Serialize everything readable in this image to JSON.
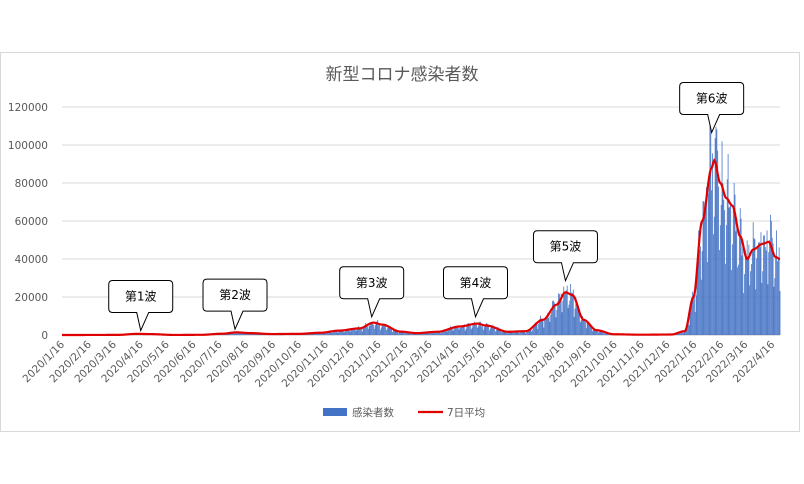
{
  "chart_data": {
    "type": "bar",
    "title": "新型コロナ感染者数",
    "ylim": [
      0,
      120000
    ],
    "yticks": [
      "0",
      "20000",
      "40000",
      "60000",
      "80000",
      "100000",
      "120000"
    ],
    "x_tick_labels": [
      "2020/1/16",
      "2020/2/16",
      "2020/3/16",
      "2020/4/16",
      "2020/5/16",
      "2020/6/16",
      "2020/7/16",
      "2020/8/16",
      "2020/9/16",
      "2020/10/16",
      "2020/11/16",
      "2020/12/16",
      "2021/1/16",
      "2021/2/16",
      "2021/3/16",
      "2021/4/16",
      "2021/5/16",
      "2021/6/16",
      "2021/7/16",
      "2021/8/16",
      "2021/9/16",
      "2021/10/16",
      "2021/11/16",
      "2021/12/16",
      "2022/1/16",
      "2022/2/16",
      "2022/3/16",
      "2022/4/16"
    ],
    "grid": true,
    "legend_position": "bottom",
    "series": [
      {
        "name": "感染者数",
        "type": "bar",
        "color": "#4472c4"
      },
      {
        "name": "7日平均",
        "type": "line",
        "color": "#e00000"
      }
    ],
    "smoothed_anchor_points": [
      [
        "2020-01-16",
        0
      ],
      [
        "2020-03-20",
        50
      ],
      [
        "2020-04-12",
        600
      ],
      [
        "2020-04-25",
        500
      ],
      [
        "2020-05-25",
        30
      ],
      [
        "2020-06-25",
        100
      ],
      [
        "2020-07-20",
        700
      ],
      [
        "2020-08-05",
        1400
      ],
      [
        "2020-08-20",
        1000
      ],
      [
        "2020-09-15",
        500
      ],
      [
        "2020-10-15",
        600
      ],
      [
        "2020-11-10",
        1200
      ],
      [
        "2020-12-01",
        2300
      ],
      [
        "2020-12-25",
        3500
      ],
      [
        "2021-01-10",
        6500
      ],
      [
        "2021-01-20",
        5500
      ],
      [
        "2021-02-10",
        1800
      ],
      [
        "2021-03-01",
        1000
      ],
      [
        "2021-03-25",
        1700
      ],
      [
        "2021-04-20",
        4500
      ],
      [
        "2021-05-10",
        6000
      ],
      [
        "2021-05-20",
        5000
      ],
      [
        "2021-06-15",
        1700
      ],
      [
        "2021-07-05",
        2000
      ],
      [
        "2021-07-25",
        8000
      ],
      [
        "2021-08-10",
        16000
      ],
      [
        "2021-08-20",
        22500
      ],
      [
        "2021-08-28",
        21000
      ],
      [
        "2021-09-10",
        8000
      ],
      [
        "2021-09-25",
        2500
      ],
      [
        "2021-10-15",
        400
      ],
      [
        "2021-11-15",
        150
      ],
      [
        "2021-12-20",
        250
      ],
      [
        "2022-01-05",
        2000
      ],
      [
        "2022-01-15",
        20000
      ],
      [
        "2022-01-25",
        60000
      ],
      [
        "2022-02-05",
        88000
      ],
      [
        "2022-02-08",
        92000
      ],
      [
        "2022-02-15",
        80000
      ],
      [
        "2022-02-22",
        72000
      ],
      [
        "2022-03-01",
        68000
      ],
      [
        "2022-03-10",
        52000
      ],
      [
        "2022-03-18",
        40000
      ],
      [
        "2022-03-25",
        45000
      ],
      [
        "2022-04-05",
        48000
      ],
      [
        "2022-04-12",
        49000
      ],
      [
        "2022-04-20",
        41000
      ],
      [
        "2022-04-25",
        40000
      ]
    ],
    "annotations": [
      {
        "label": "第1波",
        "date": "2020-04-16",
        "value": 800
      },
      {
        "label": "第2波",
        "date": "2020-08-03",
        "value": 1500
      },
      {
        "label": "第3波",
        "date": "2021-01-08",
        "value": 8000
      },
      {
        "label": "第4波",
        "date": "2021-05-08",
        "value": 8000
      },
      {
        "label": "第5波",
        "date": "2021-08-20",
        "value": 27000
      },
      {
        "label": "第6波",
        "date": "2022-02-05",
        "value": 105000
      }
    ]
  }
}
